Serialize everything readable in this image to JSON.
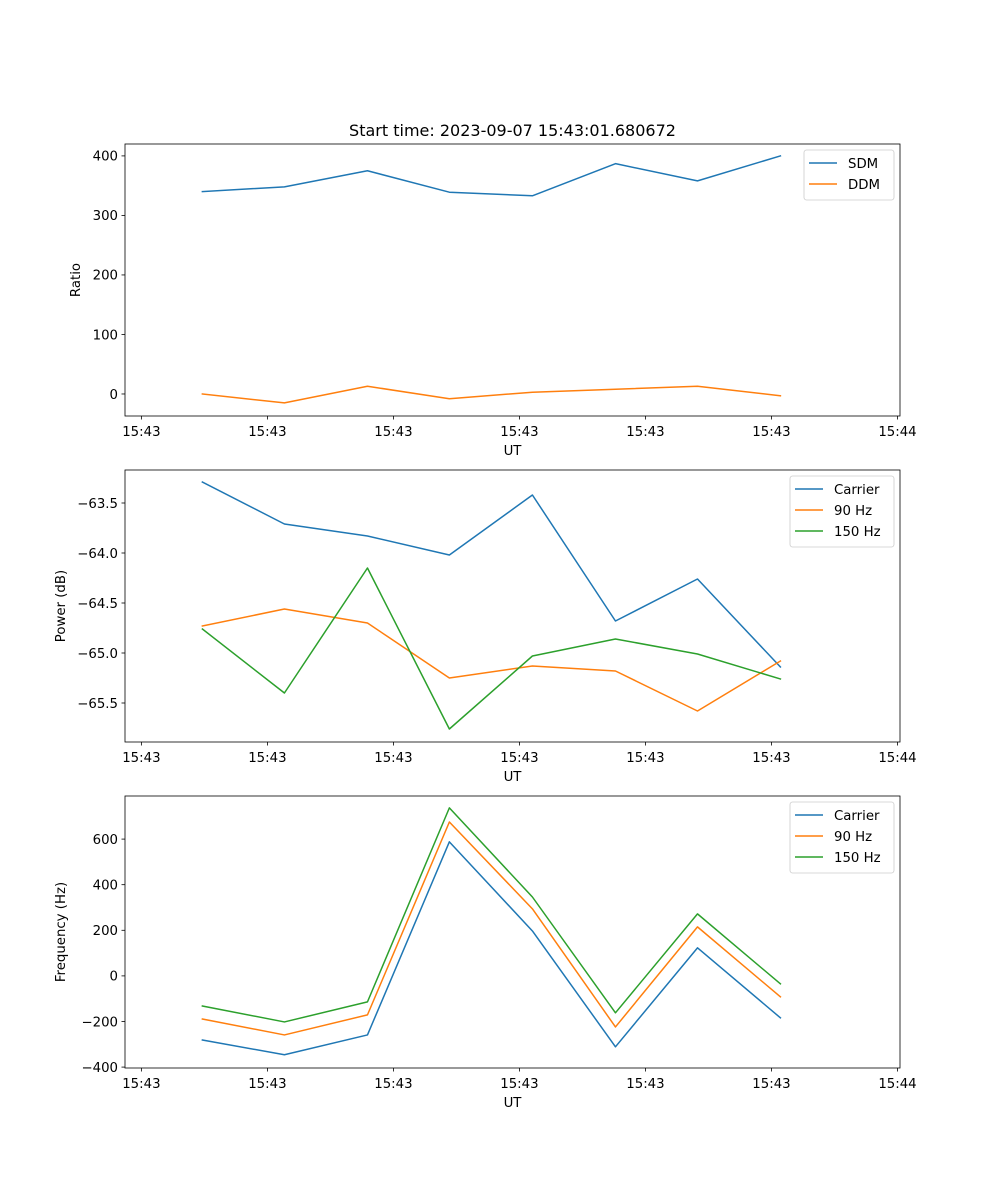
{
  "figure": {
    "title": "Start time: 2023-09-07 15:43:01.680672"
  },
  "chart_data": [
    {
      "type": "line",
      "title": "Start time: 2023-09-07 15:43:01.680672",
      "xlabel": "UT",
      "ylabel": "Ratio",
      "x_tick_labels": [
        "15:43",
        "15:43",
        "15:43",
        "15:43",
        "15:43",
        "15:43",
        "15:44"
      ],
      "x_tick_positions": [
        0,
        1,
        2,
        3,
        4,
        5,
        6
      ],
      "xlim": [
        -0.13,
        6.02
      ],
      "x": [
        0.484,
        1.135,
        1.794,
        2.444,
        3.103,
        3.762,
        4.413,
        5.071
      ],
      "ylim": [
        -37,
        420
      ],
      "y_ticks": [
        0,
        100,
        200,
        300,
        400
      ],
      "y_tick_labels": [
        "0",
        "100",
        "200",
        "300",
        "400"
      ],
      "grid": false,
      "legend_position": "top-right",
      "series": [
        {
          "name": "SDM",
          "color": "#1f77b4",
          "values": [
            340,
            348,
            375,
            339,
            333,
            387,
            358,
            400
          ]
        },
        {
          "name": "DDM",
          "color": "#ff7f0e",
          "values": [
            0,
            -15,
            13,
            -8,
            3,
            8,
            13,
            -3
          ]
        }
      ]
    },
    {
      "type": "line",
      "title": "",
      "xlabel": "UT",
      "ylabel": "Power (dB)",
      "x_tick_labels": [
        "15:43",
        "15:43",
        "15:43",
        "15:43",
        "15:43",
        "15:43",
        "15:44"
      ],
      "x_tick_positions": [
        0,
        1,
        2,
        3,
        4,
        5,
        6
      ],
      "xlim": [
        -0.13,
        6.02
      ],
      "x": [
        0.484,
        1.135,
        1.794,
        2.444,
        3.103,
        3.762,
        4.413,
        5.071
      ],
      "ylim": [
        -65.89,
        -63.17
      ],
      "y_ticks": [
        -65.5,
        -65.0,
        -64.5,
        -64.0,
        -63.5
      ],
      "y_tick_labels": [
        "−65.5",
        "−65.0",
        "−64.5",
        "−64.0",
        "−63.5"
      ],
      "grid": false,
      "legend_position": "top-right",
      "series": [
        {
          "name": "Carrier",
          "color": "#1f77b4",
          "values": [
            -63.29,
            -63.71,
            -63.83,
            -64.02,
            -63.42,
            -64.68,
            -64.26,
            -65.14
          ]
        },
        {
          "name": "90 Hz",
          "color": "#ff7f0e",
          "values": [
            -64.73,
            -64.56,
            -64.7,
            -65.25,
            -65.13,
            -65.18,
            -65.58,
            -65.08
          ]
        },
        {
          "name": "150 Hz",
          "color": "#2ca02c",
          "values": [
            -64.76,
            -65.4,
            -64.15,
            -65.76,
            -65.03,
            -64.86,
            -65.01,
            -65.26
          ]
        }
      ]
    },
    {
      "type": "line",
      "title": "",
      "xlabel": "UT",
      "ylabel": "Frequency (Hz)",
      "x_tick_labels": [
        "15:43",
        "15:43",
        "15:43",
        "15:43",
        "15:43",
        "15:43",
        "15:44"
      ],
      "x_tick_positions": [
        0,
        1,
        2,
        3,
        4,
        5,
        6
      ],
      "xlim": [
        -0.13,
        6.02
      ],
      "x": [
        0.484,
        1.135,
        1.794,
        2.444,
        3.103,
        3.762,
        4.413,
        5.071
      ],
      "ylim": [
        -404,
        789
      ],
      "y_ticks": [
        -400,
        -200,
        0,
        200,
        400,
        600
      ],
      "y_tick_labels": [
        "−400",
        "−200",
        "0",
        "200",
        "400",
        "600"
      ],
      "grid": false,
      "legend_position": "top-right",
      "series": [
        {
          "name": "Carrier",
          "color": "#1f77b4",
          "values": [
            -281,
            -346,
            -259,
            588,
            197,
            -311,
            123,
            -184
          ]
        },
        {
          "name": "90 Hz",
          "color": "#ff7f0e",
          "values": [
            -189,
            -259,
            -171,
            675,
            294,
            -224,
            215,
            -92
          ]
        },
        {
          "name": "150 Hz",
          "color": "#2ca02c",
          "values": [
            -132,
            -202,
            -114,
            737,
            346,
            -162,
            272,
            -35
          ]
        }
      ]
    }
  ]
}
